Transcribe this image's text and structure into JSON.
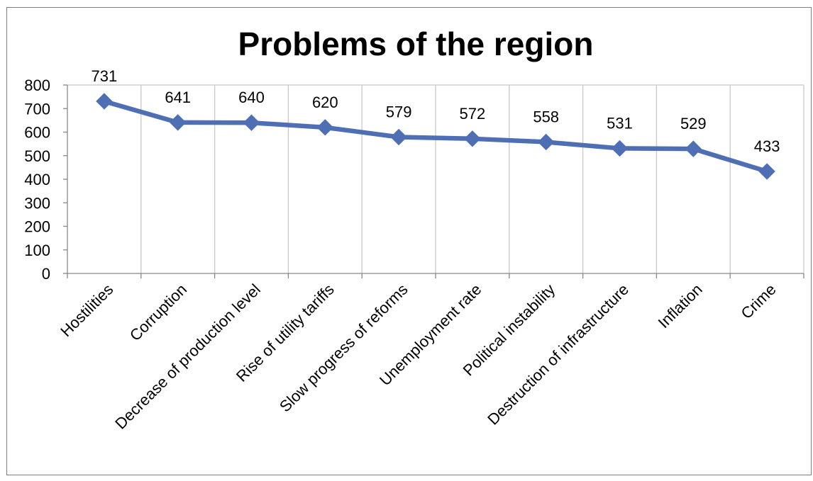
{
  "chart_data": {
    "type": "line",
    "title": "Problems of the region",
    "xlabel": "",
    "ylabel": "",
    "categories": [
      "Hostilities",
      "Corruption",
      "Decrease of production level",
      "Rise of utility tariffs",
      "Slow progress of reforms",
      "Unemployment rate",
      "Political instability",
      "Destruction of infrastructure",
      "Inflation",
      "Crime"
    ],
    "series": [
      {
        "values": [
          731,
          641,
          640,
          620,
          579,
          572,
          558,
          531,
          529,
          433
        ]
      }
    ],
    "data_labels": [
      "731",
      "641",
      "640",
      "620",
      "579",
      "572",
      "558",
      "531",
      "529",
      "433"
    ],
    "y_ticks": [
      "0",
      "100",
      "200",
      "300",
      "400",
      "500",
      "600",
      "700",
      "800"
    ],
    "ylim": [
      0,
      800
    ],
    "grid": "vertical",
    "legend": "none",
    "colors": {
      "line": "#4f6fb5",
      "marker": "#4f6fb5",
      "grid": "#c8c8c8",
      "axis": "#888888",
      "frame": "#7f7f7f",
      "text": "#000000"
    },
    "marker": "diamond"
  }
}
